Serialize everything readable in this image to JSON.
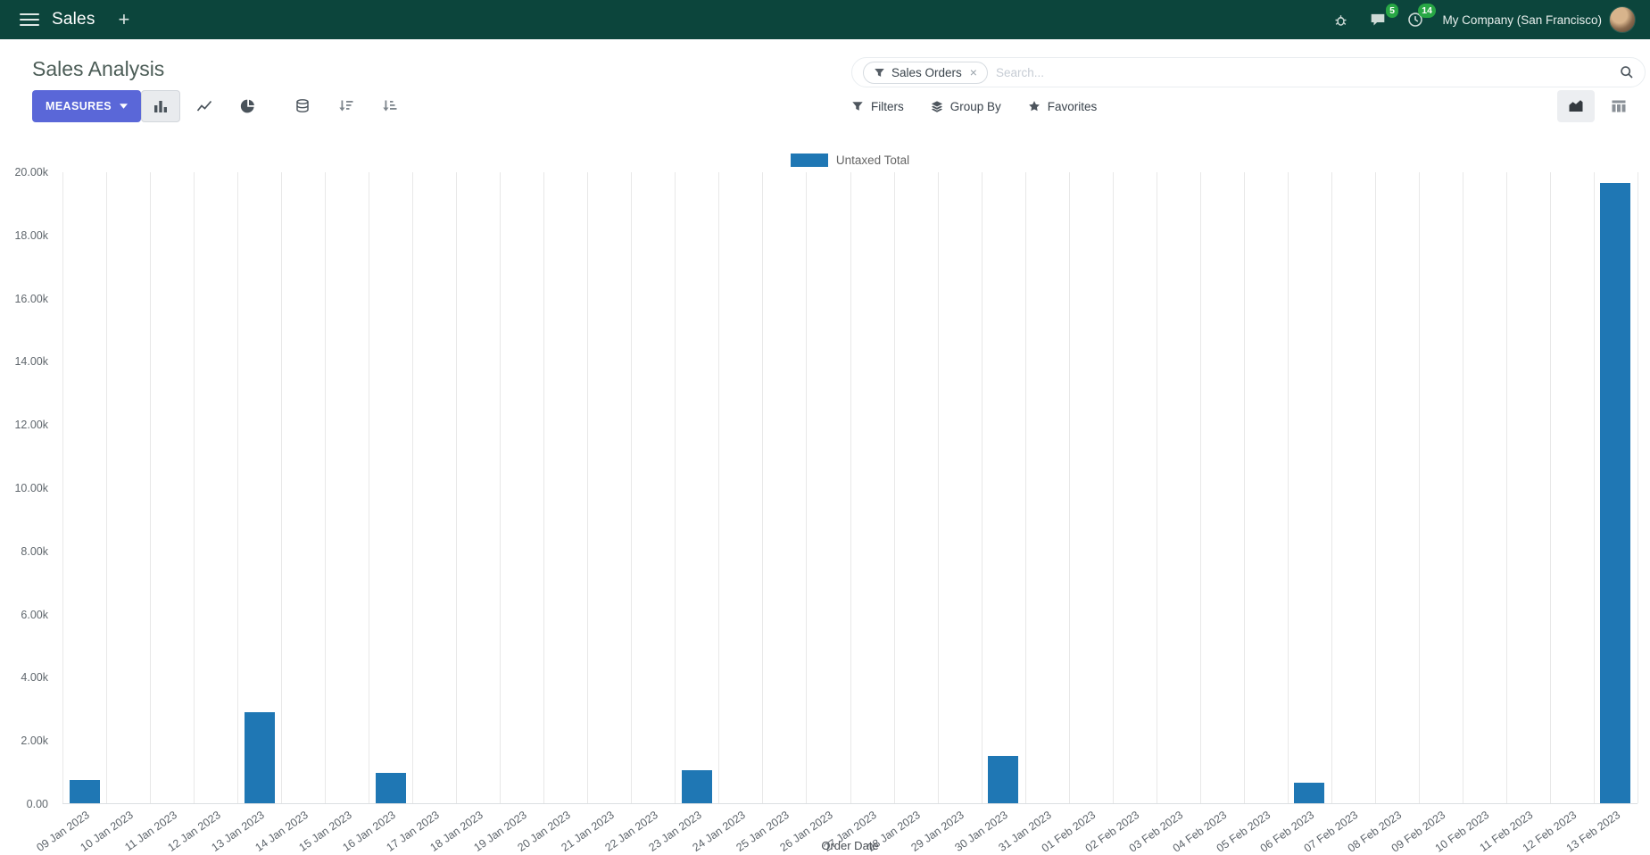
{
  "topbar": {
    "app_name": "Sales",
    "plus_label": "+",
    "company_name": "My Company (San Francisco)",
    "message_badge": "5",
    "activity_badge": "14"
  },
  "control_panel": {
    "title": "Sales Analysis",
    "measures_button": "MEASURES",
    "search": {
      "facet_label": "Sales Orders",
      "facet_remove": "×",
      "placeholder": "Search..."
    },
    "filters_label": "Filters",
    "group_by_label": "Group By",
    "favorites_label": "Favorites"
  },
  "chart_data": {
    "type": "bar",
    "title": "",
    "xlabel": "Order Date",
    "ylabel": "",
    "ylim": [
      0,
      20000
    ],
    "grid": "vertical",
    "legend_position": "top",
    "y_tick_labels": [
      "0.00",
      "2.00k",
      "4.00k",
      "6.00k",
      "8.00k",
      "10.00k",
      "12.00k",
      "14.00k",
      "16.00k",
      "18.00k",
      "20.00k"
    ],
    "categories": [
      "09 Jan 2023",
      "10 Jan 2023",
      "11 Jan 2023",
      "12 Jan 2023",
      "13 Jan 2023",
      "14 Jan 2023",
      "15 Jan 2023",
      "16 Jan 2023",
      "17 Jan 2023",
      "18 Jan 2023",
      "19 Jan 2023",
      "20 Jan 2023",
      "21 Jan 2023",
      "22 Jan 2023",
      "23 Jan 2023",
      "24 Jan 2023",
      "25 Jan 2023",
      "26 Jan 2023",
      "27 Jan 2023",
      "28 Jan 2023",
      "29 Jan 2023",
      "30 Jan 2023",
      "31 Jan 2023",
      "01 Feb 2023",
      "02 Feb 2023",
      "03 Feb 2023",
      "04 Feb 2023",
      "05 Feb 2023",
      "06 Feb 2023",
      "07 Feb 2023",
      "08 Feb 2023",
      "09 Feb 2023",
      "10 Feb 2023",
      "11 Feb 2023",
      "12 Feb 2023",
      "13 Feb 2023"
    ],
    "series": [
      {
        "name": "Untaxed Total",
        "color": "#1f77b4",
        "values": [
          750,
          0,
          0,
          0,
          2900,
          0,
          0,
          950,
          0,
          0,
          0,
          0,
          0,
          0,
          1050,
          0,
          0,
          0,
          0,
          0,
          0,
          1500,
          0,
          0,
          0,
          0,
          0,
          0,
          650,
          0,
          0,
          0,
          0,
          0,
          0,
          19650
        ]
      }
    ]
  }
}
